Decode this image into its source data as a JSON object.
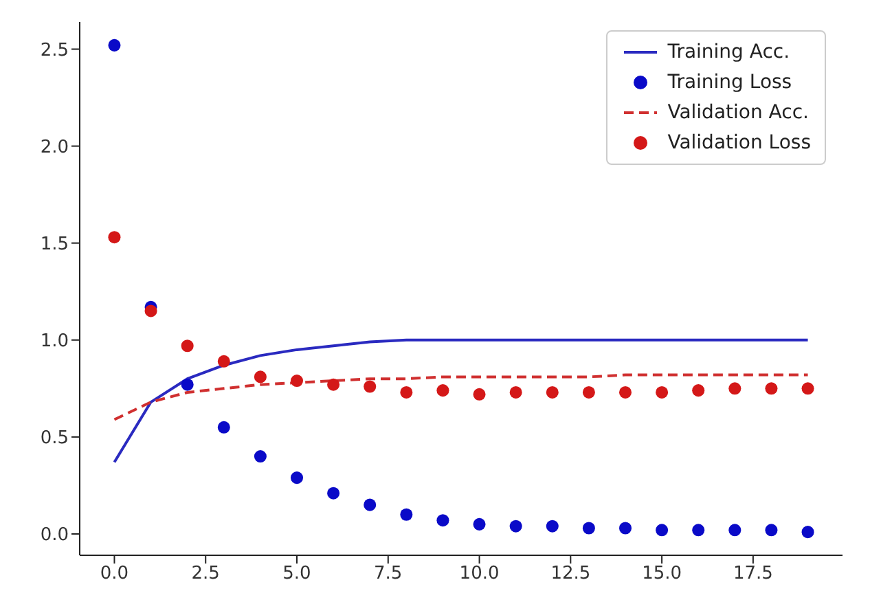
{
  "chart_data": {
    "type": "line",
    "x": [
      0,
      1,
      2,
      3,
      4,
      5,
      6,
      7,
      8,
      9,
      10,
      11,
      12,
      13,
      14,
      15,
      16,
      17,
      18,
      19
    ],
    "series": [
      {
        "name": "Training Acc.",
        "color": "#2a2ac0",
        "line_style": "solid",
        "marker": "none",
        "values": [
          0.37,
          0.68,
          0.8,
          0.87,
          0.92,
          0.95,
          0.97,
          0.99,
          1.0,
          1.0,
          1.0,
          1.0,
          1.0,
          1.0,
          1.0,
          1.0,
          1.0,
          1.0,
          1.0,
          1.0
        ]
      },
      {
        "name": "Training Loss",
        "type": "scatter",
        "color": "#0a0ac8",
        "marker": "circle",
        "values": [
          2.52,
          1.17,
          0.77,
          0.55,
          0.4,
          0.29,
          0.21,
          0.15,
          0.1,
          0.07,
          0.05,
          0.04,
          0.04,
          0.03,
          0.03,
          0.02,
          0.02,
          0.02,
          0.02,
          0.01
        ]
      },
      {
        "name": "Validation Acc.",
        "color": "#d03030",
        "line_style": "dashed",
        "marker": "none",
        "values": [
          0.59,
          0.68,
          0.73,
          0.75,
          0.77,
          0.78,
          0.79,
          0.8,
          0.8,
          0.81,
          0.81,
          0.81,
          0.81,
          0.81,
          0.82,
          0.82,
          0.82,
          0.82,
          0.82,
          0.82
        ]
      },
      {
        "name": "Validation Loss",
        "type": "scatter",
        "color": "#d41818",
        "marker": "circle",
        "values": [
          1.53,
          1.15,
          0.97,
          0.89,
          0.81,
          0.79,
          0.77,
          0.76,
          0.73,
          0.74,
          0.72,
          0.73,
          0.73,
          0.73,
          0.73,
          0.73,
          0.74,
          0.75,
          0.75,
          0.75
        ]
      }
    ],
    "xlim": [
      -0.95,
      19.95
    ],
    "xticks": [
      {
        "value": 0,
        "label": "0.0"
      },
      {
        "value": 2.5,
        "label": "2.5"
      },
      {
        "value": 5,
        "label": "5.0"
      },
      {
        "value": 7.5,
        "label": "7.5"
      },
      {
        "value": 10,
        "label": "10.0"
      },
      {
        "value": 12.5,
        "label": "12.5"
      },
      {
        "value": 15,
        "label": "15.0"
      },
      {
        "value": 17.5,
        "label": "17.5"
      }
    ],
    "ylim": [
      -0.11,
      2.64
    ],
    "yticks": [
      {
        "value": 0,
        "label": "0.0"
      },
      {
        "value": 0.5,
        "label": "0.5"
      },
      {
        "value": 1,
        "label": "1.0"
      },
      {
        "value": 1.5,
        "label": "1.5"
      },
      {
        "value": 2,
        "label": "2.0"
      },
      {
        "value": 2.5,
        "label": "2.5"
      }
    ],
    "grid": false,
    "legend": "top right"
  }
}
